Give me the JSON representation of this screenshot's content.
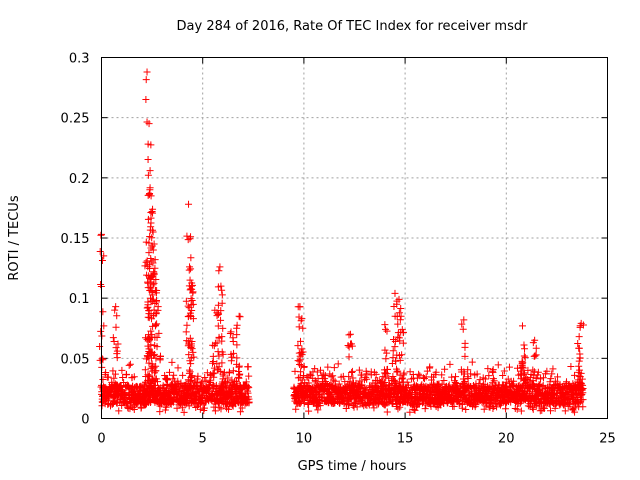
{
  "chart_data": {
    "type": "scatter",
    "title": "Day 284 of 2016, Rate Of TEC Index for receiver msdr",
    "xlabel": "GPS time / hours",
    "ylabel": "ROTI / TECUs",
    "xlim": [
      0,
      25
    ],
    "ylim": [
      0,
      0.3
    ],
    "xticks": [
      0,
      5,
      10,
      15,
      20,
      25
    ],
    "yticks": [
      0,
      0.05,
      0.1,
      0.15,
      0.2,
      0.25,
      0.3
    ],
    "xtick_labels": [
      "0",
      "5",
      "10",
      "15",
      "20",
      "25"
    ],
    "ytick_labels": [
      "0",
      "0.05",
      "0.1",
      "0.15",
      "0.2",
      "0.25",
      "0.3"
    ],
    "grid": true,
    "marker": "+",
    "marker_color": "#ff0000",
    "series": [
      {
        "name": "ROTI",
        "segments": [
          {
            "start": 0.0,
            "end": 7.3,
            "baseline": [
              0.012,
              0.028
            ]
          },
          {
            "start": 9.5,
            "end": 23.8,
            "baseline": [
              0.012,
              0.028
            ]
          }
        ],
        "peaks": [
          {
            "x": 0.0,
            "y": 0.153
          },
          {
            "x": 0.7,
            "y": 0.093
          },
          {
            "x": 2.25,
            "y": 0.288
          },
          {
            "x": 2.35,
            "y": 0.245
          },
          {
            "x": 2.4,
            "y": 0.206
          },
          {
            "x": 2.45,
            "y": 0.185
          },
          {
            "x": 2.5,
            "y": 0.172
          },
          {
            "x": 2.55,
            "y": 0.155
          },
          {
            "x": 2.6,
            "y": 0.145
          },
          {
            "x": 2.65,
            "y": 0.132
          },
          {
            "x": 2.8,
            "y": 0.093
          },
          {
            "x": 4.3,
            "y": 0.178
          },
          {
            "x": 4.4,
            "y": 0.151
          },
          {
            "x": 4.35,
            "y": 0.126
          },
          {
            "x": 4.45,
            "y": 0.11
          },
          {
            "x": 5.6,
            "y": 0.09
          },
          {
            "x": 5.85,
            "y": 0.126
          },
          {
            "x": 5.9,
            "y": 0.11
          },
          {
            "x": 6.4,
            "y": 0.072
          },
          {
            "x": 6.8,
            "y": 0.085
          },
          {
            "x": 9.8,
            "y": 0.093
          },
          {
            "x": 9.9,
            "y": 0.083
          },
          {
            "x": 12.3,
            "y": 0.07
          },
          {
            "x": 14.5,
            "y": 0.104
          },
          {
            "x": 14.7,
            "y": 0.099
          },
          {
            "x": 14.8,
            "y": 0.085
          },
          {
            "x": 14.0,
            "y": 0.078
          },
          {
            "x": 17.9,
            "y": 0.082
          },
          {
            "x": 20.8,
            "y": 0.077
          },
          {
            "x": 20.9,
            "y": 0.058
          },
          {
            "x": 21.4,
            "y": 0.065
          },
          {
            "x": 23.7,
            "y": 0.079
          },
          {
            "x": 23.6,
            "y": 0.068
          }
        ]
      }
    ]
  }
}
